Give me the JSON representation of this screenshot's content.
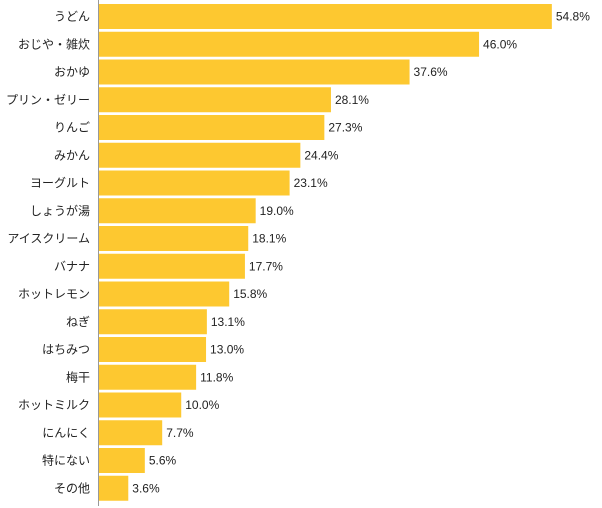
{
  "chart_data": {
    "type": "bar",
    "orientation": "horizontal",
    "title": "",
    "xlabel": "",
    "ylabel": "",
    "xlim": [
      0,
      55
    ],
    "grid": false,
    "bar_color": "#FDC830",
    "categories": [
      "うどん",
      "おじや・雑炊",
      "おかゆ",
      "プリン・ゼリー",
      "りんご",
      "みかん",
      "ヨーグルト",
      "しょうが湯",
      "アイスクリーム",
      "バナナ",
      "ホットレモン",
      "ねぎ",
      "はちみつ",
      "梅干",
      "ホットミルク",
      "にんにく",
      "特にない",
      "その他"
    ],
    "values": [
      54.8,
      46.0,
      37.6,
      28.1,
      27.3,
      24.4,
      23.1,
      19.0,
      18.1,
      17.7,
      15.8,
      13.1,
      13.0,
      11.8,
      10.0,
      7.7,
      5.6,
      3.6
    ],
    "value_labels": [
      "54.8%",
      "46.0%",
      "37.6%",
      "28.1%",
      "27.3%",
      "24.4%",
      "23.1%",
      "19.0%",
      "18.1%",
      "17.7%",
      "15.8%",
      "13.1%",
      "13.0%",
      "11.8%",
      "10.0%",
      "7.7%",
      "5.6%",
      "3.6%"
    ]
  }
}
